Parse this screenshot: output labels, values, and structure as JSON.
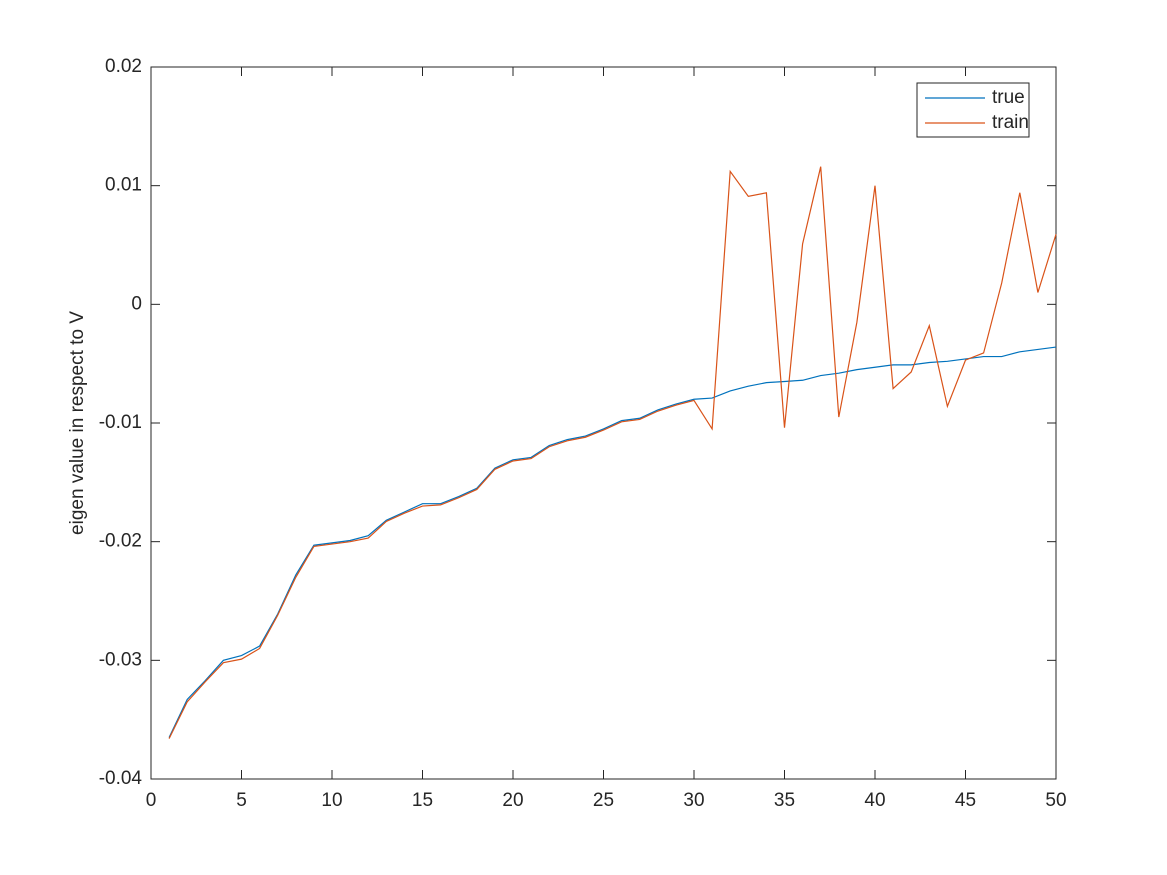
{
  "chart_data": {
    "type": "line",
    "ylabel": "eigen value in respect to V",
    "x": [
      1,
      2,
      3,
      4,
      5,
      6,
      7,
      8,
      9,
      10,
      11,
      12,
      13,
      14,
      15,
      16,
      17,
      18,
      19,
      20,
      21,
      22,
      23,
      24,
      25,
      26,
      27,
      28,
      29,
      30,
      31,
      32,
      33,
      34,
      35,
      36,
      37,
      38,
      39,
      40,
      41,
      42,
      43,
      44,
      45,
      46,
      47,
      48,
      49,
      50
    ],
    "series": [
      {
        "name": "true",
        "color": "#0072bd",
        "values": [
          -0.0365,
          -0.0333,
          -0.0317,
          -0.03,
          -0.0296,
          -0.0288,
          -0.0261,
          -0.0228,
          -0.0203,
          -0.0201,
          -0.0199,
          -0.0195,
          -0.0182,
          -0.0175,
          -0.0168,
          -0.0168,
          -0.0162,
          -0.0155,
          -0.0138,
          -0.0131,
          -0.0129,
          -0.0119,
          -0.0114,
          -0.0111,
          -0.0105,
          -0.0098,
          -0.0096,
          -0.0089,
          -0.0084,
          -0.008,
          -0.0079,
          -0.0073,
          -0.0069,
          -0.0066,
          -0.0065,
          -0.0064,
          -0.006,
          -0.0058,
          -0.0055,
          -0.0053,
          -0.0051,
          -0.0051,
          -0.0049,
          -0.0048,
          -0.0046,
          -0.0044,
          -0.0044,
          -0.004,
          -0.0038,
          -0.0036
        ]
      },
      {
        "name": "train",
        "color": "#d95319",
        "values": [
          -0.0366,
          -0.0335,
          -0.0318,
          -0.0302,
          -0.0299,
          -0.029,
          -0.0262,
          -0.023,
          -0.0204,
          -0.0202,
          -0.02,
          -0.0197,
          -0.0183,
          -0.0176,
          -0.017,
          -0.0169,
          -0.0163,
          -0.0156,
          -0.0139,
          -0.0132,
          -0.013,
          -0.012,
          -0.0115,
          -0.0112,
          -0.0106,
          -0.0099,
          -0.0097,
          -0.009,
          -0.0085,
          -0.0081,
          -0.0105,
          0.0112,
          0.0091,
          0.0094,
          -0.0104,
          0.0051,
          0.0116,
          -0.0095,
          -0.0015,
          0.01,
          -0.0071,
          -0.0057,
          -0.0018,
          -0.0086,
          -0.0047,
          -0.0041,
          0.0018,
          0.0094,
          0.001,
          0.0059
        ]
      }
    ],
    "xlim": [
      0,
      50
    ],
    "xticks": [
      0,
      5,
      10,
      15,
      20,
      25,
      30,
      35,
      40,
      45,
      50
    ],
    "ylim": [
      -0.04,
      0.02
    ],
    "yticks": [
      -0.04,
      -0.03,
      -0.02,
      -0.01,
      0,
      0.01,
      0.02
    ],
    "legend": "upper-right",
    "grid": false
  }
}
